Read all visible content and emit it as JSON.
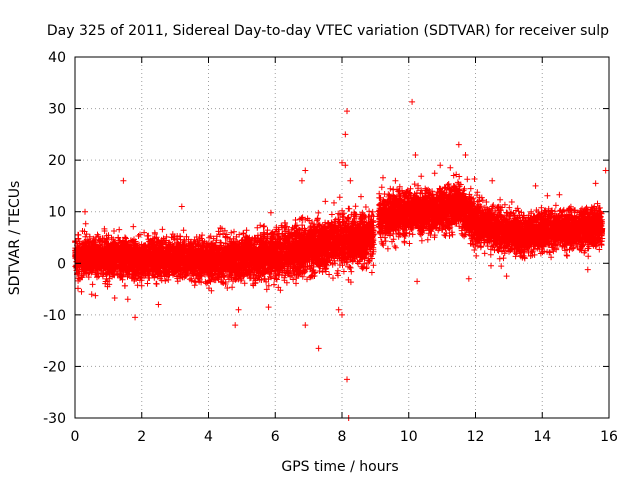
{
  "chart_data": {
    "type": "scatter",
    "title": "Day 325 of 2011, Sidereal Day-to-day VTEC variation (SDTVAR) for receiver sulp",
    "xlabel": "GPS time / hours",
    "ylabel": "SDTVAR / TECUs",
    "xlim": [
      0,
      16
    ],
    "ylim": [
      -30,
      40
    ],
    "xticks": [
      0,
      2,
      4,
      6,
      8,
      10,
      12,
      14,
      16
    ],
    "yticks": [
      -30,
      -20,
      -10,
      0,
      10,
      20,
      30,
      40
    ],
    "grid": true,
    "marker": "+",
    "color": "#ff0000",
    "gap": [
      8.95,
      9.1
    ],
    "segments": [
      {
        "x0": 0.0,
        "x1": 2.0,
        "mean0": 1.0,
        "mean1": 1.0,
        "spread": 3.0
      },
      {
        "x0": 2.0,
        "x1": 4.0,
        "mean0": 1.0,
        "mean1": 0.5,
        "spread": 3.0
      },
      {
        "x0": 4.0,
        "x1": 6.0,
        "mean0": 0.5,
        "mean1": 1.5,
        "spread": 3.5
      },
      {
        "x0": 6.0,
        "x1": 8.0,
        "mean0": 1.5,
        "mean1": 4.0,
        "spread": 4.0
      },
      {
        "x0": 8.0,
        "x1": 8.95,
        "mean0": 4.0,
        "mean1": 5.0,
        "spread": 4.0
      },
      {
        "x0": 9.1,
        "x1": 10.5,
        "mean0": 9.0,
        "mean1": 10.0,
        "spread": 3.5
      },
      {
        "x0": 10.5,
        "x1": 11.5,
        "mean0": 10.0,
        "mean1": 11.0,
        "spread": 3.5
      },
      {
        "x0": 11.5,
        "x1": 12.0,
        "mean0": 11.0,
        "mean1": 8.0,
        "spread": 3.5
      },
      {
        "x0": 12.0,
        "x1": 13.5,
        "mean0": 8.0,
        "mean1": 5.0,
        "spread": 3.5
      },
      {
        "x0": 13.5,
        "x1": 15.8,
        "mean0": 6.0,
        "mean1": 7.0,
        "spread": 3.0
      }
    ],
    "outliers": [
      {
        "x": 1.45,
        "y": 16
      },
      {
        "x": 1.8,
        "y": -10.5
      },
      {
        "x": 3.2,
        "y": 11
      },
      {
        "x": 4.8,
        "y": -12
      },
      {
        "x": 4.9,
        "y": -9
      },
      {
        "x": 6.9,
        "y": 18
      },
      {
        "x": 6.8,
        "y": 16
      },
      {
        "x": 6.9,
        "y": -12
      },
      {
        "x": 7.3,
        "y": -16.5
      },
      {
        "x": 8.0,
        "y": 19.5
      },
      {
        "x": 8.1,
        "y": 19
      },
      {
        "x": 8.1,
        "y": 25
      },
      {
        "x": 8.15,
        "y": 29.5
      },
      {
        "x": 8.15,
        "y": -22.5
      },
      {
        "x": 8.2,
        "y": -30
      },
      {
        "x": 8.25,
        "y": 16
      },
      {
        "x": 8.0,
        "y": -10
      },
      {
        "x": 10.1,
        "y": 31.3
      },
      {
        "x": 10.2,
        "y": 21
      },
      {
        "x": 11.5,
        "y": 23
      },
      {
        "x": 11.7,
        "y": 21
      },
      {
        "x": 9.6,
        "y": 16
      },
      {
        "x": 10.25,
        "y": -3.5
      },
      {
        "x": 12.5,
        "y": 16
      },
      {
        "x": 13.8,
        "y": 15
      },
      {
        "x": 15.6,
        "y": 15.5
      },
      {
        "x": 15.9,
        "y": 18
      },
      {
        "x": 11.8,
        "y": -3
      },
      {
        "x": 0.3,
        "y": 10
      },
      {
        "x": 0.5,
        "y": -6
      },
      {
        "x": 2.5,
        "y": -8
      },
      {
        "x": 5.8,
        "y": -8.5
      },
      {
        "x": 7.5,
        "y": 12
      },
      {
        "x": 7.9,
        "y": -9
      }
    ]
  }
}
